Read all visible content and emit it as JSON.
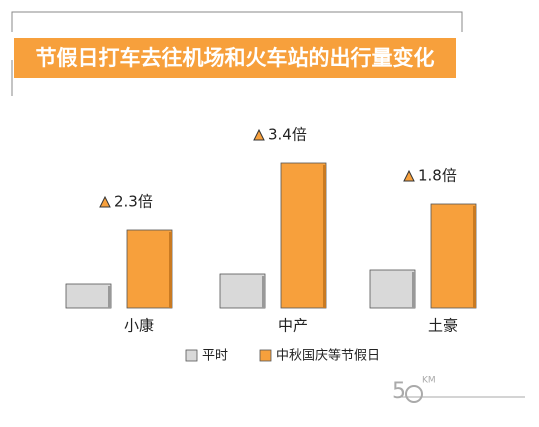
{
  "chart_data": {
    "type": "bar",
    "title": "节假日打车去往机场和火车站的出行量变化",
    "categories": [
      "小康",
      "中产",
      "土豪"
    ],
    "series": [
      {
        "name": "平时",
        "color": "#d9d9d9",
        "values": [
          24,
          34,
          38
        ]
      },
      {
        "name": "中秋国庆等节假日",
        "color": "#f7a03c",
        "values": [
          78,
          145,
          104
        ]
      }
    ],
    "ylim": [
      0,
      160
    ],
    "annotations": [
      "2.3倍",
      "3.4倍",
      "1.8倍"
    ],
    "watermark": {
      "digit": "5",
      "unit": "KM"
    }
  }
}
